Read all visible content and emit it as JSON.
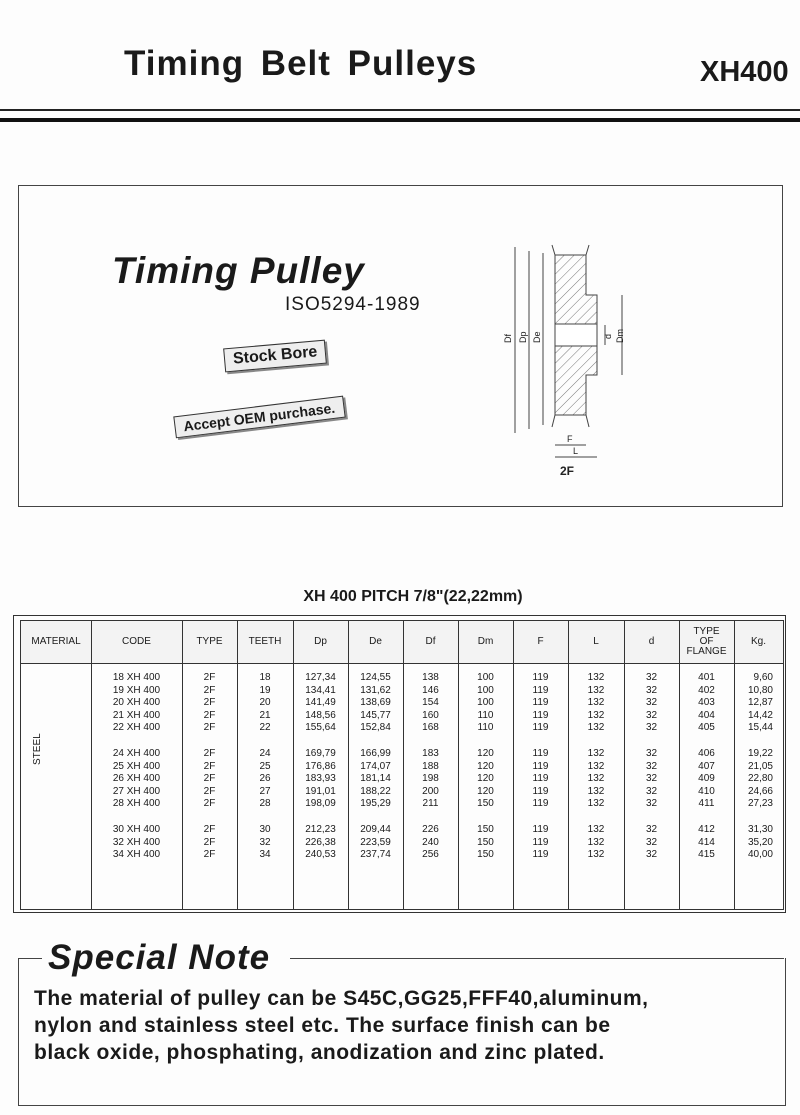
{
  "header": {
    "title": "Timing Belt Pulleys",
    "code": "XH400"
  },
  "product": {
    "title": "Timing Pulley",
    "standard": "ISO5294-1989",
    "tag_stock": "Stock Bore",
    "tag_oem": "Accept OEM purchase.",
    "diagram": {
      "label": "2F",
      "dims": [
        "Df",
        "Dp",
        "De",
        "d",
        "Dm",
        "F",
        "L"
      ]
    }
  },
  "table": {
    "title": "XH 400 PITCH 7/8\"(22,22mm)",
    "headers": [
      "MATERIAL",
      "CODE",
      "TYPE",
      "TEETH",
      "Dp",
      "De",
      "Df",
      "Dm",
      "F",
      "L",
      "d",
      "TYPE OF FLANGE",
      "Kg."
    ],
    "material": "STEEL",
    "groups": [
      [
        [
          "18 XH 400",
          "2F",
          "18",
          "127,34",
          "124,55",
          "138",
          "100",
          "119",
          "132",
          "32",
          "401",
          "9,60"
        ],
        [
          "19 XH 400",
          "2F",
          "19",
          "134,41",
          "131,62",
          "146",
          "100",
          "119",
          "132",
          "32",
          "402",
          "10,80"
        ],
        [
          "20 XH 400",
          "2F",
          "20",
          "141,49",
          "138,69",
          "154",
          "100",
          "119",
          "132",
          "32",
          "403",
          "12,87"
        ],
        [
          "21 XH 400",
          "2F",
          "21",
          "148,56",
          "145,77",
          "160",
          "110",
          "119",
          "132",
          "32",
          "404",
          "14,42"
        ],
        [
          "22 XH 400",
          "2F",
          "22",
          "155,64",
          "152,84",
          "168",
          "110",
          "119",
          "132",
          "32",
          "405",
          "15,44"
        ]
      ],
      [
        [
          "24 XH 400",
          "2F",
          "24",
          "169,79",
          "166,99",
          "183",
          "120",
          "119",
          "132",
          "32",
          "406",
          "19,22"
        ],
        [
          "25 XH 400",
          "2F",
          "25",
          "176,86",
          "174,07",
          "188",
          "120",
          "119",
          "132",
          "32",
          "407",
          "21,05"
        ],
        [
          "26 XH 400",
          "2F",
          "26",
          "183,93",
          "181,14",
          "198",
          "120",
          "119",
          "132",
          "32",
          "409",
          "22,80"
        ],
        [
          "27 XH 400",
          "2F",
          "27",
          "191,01",
          "188,22",
          "200",
          "120",
          "119",
          "132",
          "32",
          "410",
          "24,66"
        ],
        [
          "28 XH 400",
          "2F",
          "28",
          "198,09",
          "195,29",
          "211",
          "150",
          "119",
          "132",
          "32",
          "411",
          "27,23"
        ]
      ],
      [
        [
          "30 XH 400",
          "2F",
          "30",
          "212,23",
          "209,44",
          "226",
          "150",
          "119",
          "132",
          "32",
          "412",
          "31,30"
        ],
        [
          "32 XH 400",
          "2F",
          "32",
          "226,38",
          "223,59",
          "240",
          "150",
          "119",
          "132",
          "32",
          "414",
          "35,20"
        ],
        [
          "34 XH 400",
          "2F",
          "34",
          "240,53",
          "237,74",
          "256",
          "150",
          "119",
          "132",
          "32",
          "415",
          "40,00"
        ]
      ]
    ]
  },
  "note": {
    "title": "Special Note",
    "lines": [
      "The material of pulley can be S45C,GG25,FFF40,aluminum,",
      "nylon and stainless steel etc. The surface finish can be",
      "black oxide, phosphating, anodization and zinc plated."
    ]
  }
}
